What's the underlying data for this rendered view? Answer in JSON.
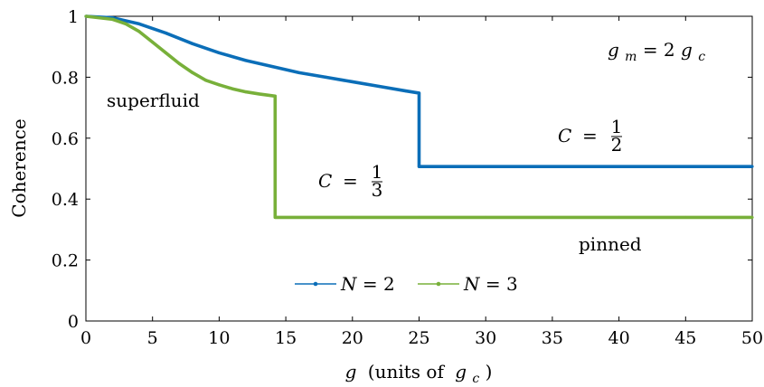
{
  "chart_data": {
    "type": "line",
    "xlabel_var": "g",
    "xlabel_rest": "(units of",
    "xlabel_sub_var": "g",
    "xlabel_sub": "c",
    "xlabel_close": ")",
    "ylabel": "Coherence",
    "xlim": [
      0,
      50
    ],
    "ylim": [
      0,
      1
    ],
    "xticks": [
      0,
      5,
      10,
      15,
      20,
      25,
      30,
      35,
      40,
      45,
      50
    ],
    "yticks": [
      0,
      0.2,
      0.4,
      0.6,
      0.8,
      1
    ],
    "xtick_labels": [
      "0",
      "5",
      "10",
      "15",
      "20",
      "25",
      "30",
      "35",
      "40",
      "45",
      "50"
    ],
    "ytick_labels": [
      "0",
      "0.2",
      "0.4",
      "0.6",
      "0.8",
      "1"
    ],
    "grid": false,
    "legend_position": "bottom-center",
    "series": [
      {
        "name": "N = 2",
        "color": "#0b6eb8",
        "x": [
          0,
          2,
          4,
          6,
          8,
          10,
          12,
          14,
          16,
          18,
          20,
          22,
          24,
          25,
          25,
          30,
          35,
          40,
          45,
          50
        ],
        "y": [
          1.0,
          0.995,
          0.975,
          0.945,
          0.91,
          0.88,
          0.855,
          0.835,
          0.815,
          0.8,
          0.785,
          0.77,
          0.755,
          0.748,
          0.507,
          0.507,
          0.507,
          0.507,
          0.507,
          0.507
        ]
      },
      {
        "name": "N = 3",
        "color": "#78b03a",
        "x": [
          0,
          2,
          3,
          4,
          5,
          6,
          7,
          8,
          9,
          10,
          11,
          12,
          13,
          14.2,
          14.2,
          20,
          25,
          30,
          35,
          40,
          45,
          50
        ],
        "y": [
          1.0,
          0.99,
          0.975,
          0.95,
          0.915,
          0.88,
          0.845,
          0.815,
          0.79,
          0.775,
          0.762,
          0.752,
          0.745,
          0.738,
          0.34,
          0.34,
          0.34,
          0.34,
          0.34,
          0.34,
          0.34,
          0.34
        ]
      }
    ],
    "annotations": {
      "gm_formula": {
        "lhs": "g",
        "lhs_sub": "m",
        "eq": " = 2",
        "rhs": "g",
        "rhs_sub": "c"
      },
      "superfluid": "superfluid",
      "pinned": "pinned",
      "c_half": {
        "var": "C",
        "eq": "=",
        "num": "1",
        "den": "2"
      },
      "c_third": {
        "var": "C",
        "eq": "=",
        "num": "1",
        "den": "3"
      }
    },
    "legend": {
      "n2": {
        "var": "N",
        "eq": " = 2"
      },
      "n3": {
        "var": "N",
        "eq": " = 3"
      }
    }
  }
}
